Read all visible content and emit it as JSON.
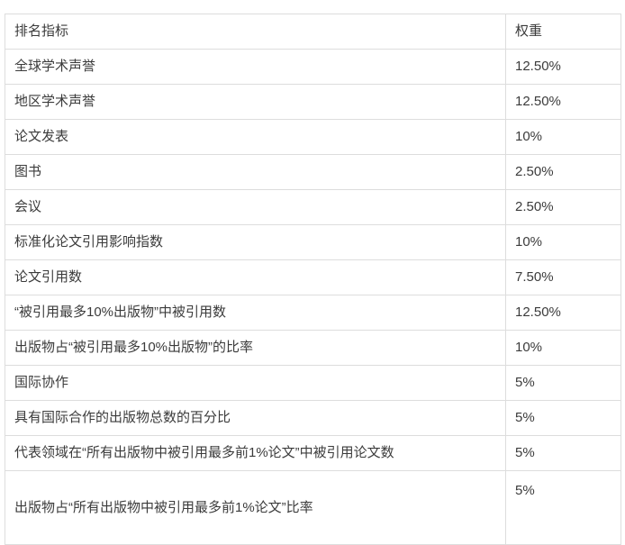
{
  "colors": {
    "background": "#ffffff",
    "border": "#dddddd",
    "text": "#3b3b3b"
  },
  "table": {
    "headers": {
      "indicator": "排名指标",
      "weight": "权重"
    },
    "rows": [
      {
        "indicator": "全球学术声誉",
        "weight": "12.50%"
      },
      {
        "indicator": "地区学术声誉",
        "weight": "12.50%"
      },
      {
        "indicator": "论文发表",
        "weight": "10%"
      },
      {
        "indicator": "图书",
        "weight": "2.50%"
      },
      {
        "indicator": "会议",
        "weight": "2.50%"
      },
      {
        "indicator": "标准化论文引用影响指数",
        "weight": "10%"
      },
      {
        "indicator": "论文引用数",
        "weight": "7.50%"
      },
      {
        "indicator": "“被引用最多10%出版物”中被引用数",
        "weight": "12.50%"
      },
      {
        "indicator": "出版物占“被引用最多10%出版物”的比率",
        "weight": "10%"
      },
      {
        "indicator": "国际协作",
        "weight": "5%"
      },
      {
        "indicator": "具有国际合作的出版物总数的百分比",
        "weight": "5%"
      },
      {
        "indicator": "代表领域在“所有出版物中被引用最多前1%论文”中被引用论文数",
        "weight": "5%"
      },
      {
        "indicator": "出版物占“所有出版物中被引用最多前1%论文”比率",
        "weight": "5%"
      }
    ]
  }
}
